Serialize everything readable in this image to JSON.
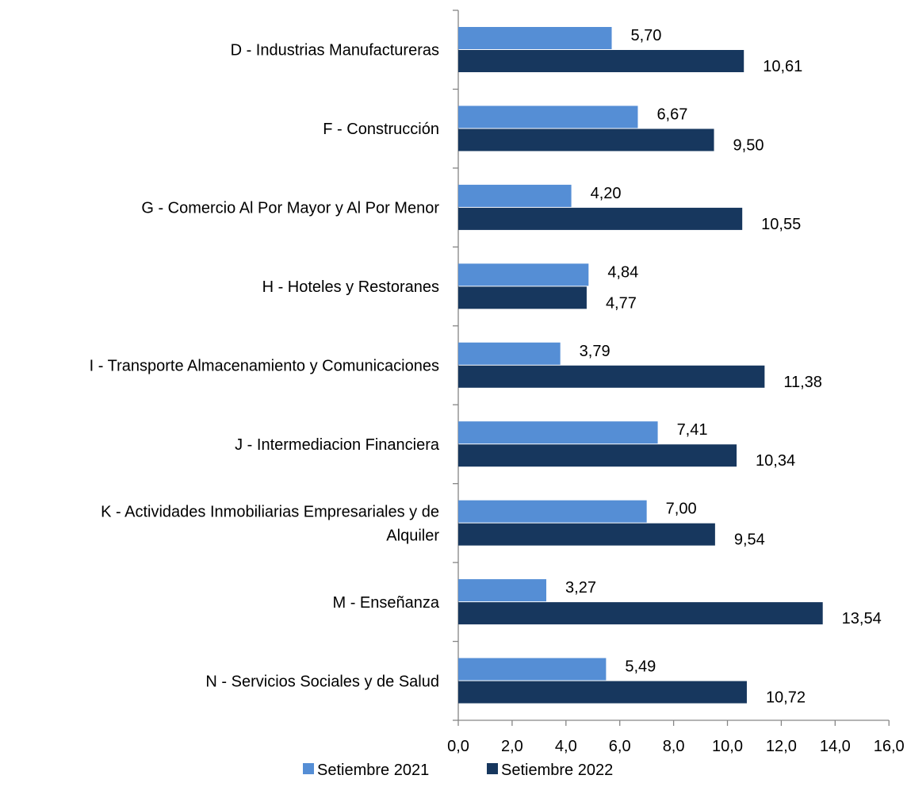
{
  "chart_data": {
    "type": "bar",
    "orientation": "horizontal",
    "title": "",
    "xlabel": "",
    "ylabel": "",
    "xlim": [
      0,
      16
    ],
    "x_ticks": [
      0,
      2,
      4,
      6,
      8,
      10,
      12,
      14,
      16
    ],
    "x_tick_labels": [
      "0,0",
      "2,0",
      "4,0",
      "6,0",
      "8,0",
      "10,0",
      "12,0",
      "14,0",
      "16,0"
    ],
    "grid": false,
    "legend_position": "bottom",
    "categories": [
      [
        "D - Industrias  Manufactureras"
      ],
      [
        "F - Construcción"
      ],
      [
        "G - Comercio Al Por Mayor y Al Por  Menor"
      ],
      [
        "H - Hoteles y Restoranes"
      ],
      [
        "I - Transporte Almacenamiento y Comunicaciones"
      ],
      [
        "J - Intermediacion Financiera"
      ],
      [
        "K - Actividades Inmobiliarias Empresariales y de",
        "Alquiler"
      ],
      [
        "M - Enseñanza"
      ],
      [
        "N - Servicios Sociales y de Salud"
      ]
    ],
    "series": [
      {
        "name": "Setiembre 2021",
        "color": "#558ed5",
        "values": [
          5.7,
          6.67,
          4.2,
          4.84,
          3.79,
          7.41,
          7.0,
          3.27,
          5.49
        ],
        "labels": [
          "5,70",
          "6,67",
          "4,20",
          "4,84",
          "3,79",
          "7,41",
          "7,00",
          "3,27",
          "5,49"
        ]
      },
      {
        "name": "Setiembre 2022",
        "color": "#17375e",
        "values": [
          10.61,
          9.5,
          10.55,
          4.77,
          11.38,
          10.34,
          9.54,
          13.54,
          10.72
        ],
        "labels": [
          "10,61",
          "9,50",
          "10,55",
          "4,77",
          "11,38",
          "10,34",
          "9,54",
          "13,54",
          "10,72"
        ]
      }
    ]
  }
}
